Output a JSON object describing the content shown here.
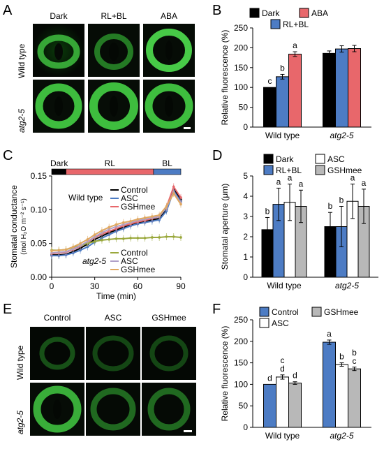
{
  "panels": {
    "A": {
      "letter": "A",
      "columns": [
        "Dark",
        "RL+BL",
        "ABA"
      ],
      "rows": [
        "Wild type",
        "atg2-5"
      ]
    },
    "E": {
      "letter": "E",
      "columns": [
        "Control",
        "ASC",
        "GSHmee"
      ],
      "rows": [
        "Wild type",
        "atg2-5"
      ]
    }
  },
  "chart_data": [
    {
      "id": "B",
      "letter": "B",
      "type": "bar",
      "ylabel": "Relative fluorescence (%)",
      "ylim": [
        0,
        250
      ],
      "yticks": [
        0,
        50,
        100,
        150,
        200,
        250
      ],
      "categories": [
        "Wild type",
        "atg2-5"
      ],
      "legend": [
        {
          "name": "Dark",
          "color": "#000000"
        },
        {
          "name": "ABA",
          "color": "#e8676b"
        },
        {
          "name": "RL+BL",
          "color": "#4d7cc4"
        }
      ],
      "series": [
        {
          "name": "Dark",
          "color": "#000000",
          "values": [
            100,
            186
          ],
          "errors": [
            0,
            6
          ],
          "letters": [
            "c",
            ""
          ]
        },
        {
          "name": "RL+BL",
          "color": "#4d7cc4",
          "values": [
            127,
            197
          ],
          "errors": [
            6,
            8
          ],
          "letters": [
            "b",
            ""
          ]
        },
        {
          "name": "ABA",
          "color": "#e8676b",
          "values": [
            184,
            198
          ],
          "errors": [
            6,
            8
          ],
          "letters": [
            "a",
            ""
          ]
        }
      ]
    },
    {
      "id": "C",
      "letter": "C",
      "type": "line",
      "xlabel": "Time (min)",
      "ylabel": "Stomatal conductance",
      "ylabel2": "(mol H₂O m⁻² s⁻¹)",
      "xlim": [
        0,
        90
      ],
      "ylim": [
        0,
        0.15
      ],
      "xticks": [
        0,
        30,
        60,
        90
      ],
      "yticks": [
        0,
        0.05,
        0.1,
        0.15
      ],
      "yticklabels": [
        "0.00",
        "0.05",
        "0.10",
        "0.15"
      ],
      "light_bar": [
        {
          "label": "Dark",
          "start": 0,
          "end": 10,
          "color": "#000000"
        },
        {
          "label": "RL",
          "start": 10,
          "end": 71,
          "color": "#e8676b"
        },
        {
          "label": "BL",
          "start": 71,
          "end": 90,
          "color": "#4d7cc4"
        }
      ],
      "legend_wt": {
        "title": "Wild type",
        "items": [
          {
            "name": "Control",
            "color": "#000000"
          },
          {
            "name": "ASC",
            "color": "#4d7cc4"
          },
          {
            "name": "GSHmee",
            "color": "#e8676b"
          }
        ]
      },
      "legend_atg": {
        "title": "atg2-5",
        "items": [
          {
            "name": "Control",
            "color": "#9aa83c"
          },
          {
            "name": "ASC",
            "color": "#b0a0c8"
          },
          {
            "name": "GSHmee",
            "color": "#e0a860"
          }
        ]
      },
      "x": [
        0,
        5,
        10,
        15,
        20,
        25,
        30,
        35,
        40,
        45,
        50,
        55,
        60,
        65,
        70,
        75,
        80,
        85,
        90
      ],
      "series": [
        {
          "name": "Wild type Control",
          "color": "#000000",
          "values": [
            0.033,
            0.033,
            0.034,
            0.038,
            0.043,
            0.049,
            0.056,
            0.061,
            0.066,
            0.07,
            0.074,
            0.078,
            0.081,
            0.083,
            0.085,
            0.087,
            0.1,
            0.131,
            0.115
          ]
        },
        {
          "name": "Wild type ASC",
          "color": "#4d7cc4",
          "values": [
            0.032,
            0.032,
            0.033,
            0.036,
            0.04,
            0.045,
            0.052,
            0.058,
            0.063,
            0.068,
            0.072,
            0.076,
            0.079,
            0.081,
            0.083,
            0.085,
            0.098,
            0.128,
            0.112
          ]
        },
        {
          "name": "Wild type GSHmee",
          "color": "#e8676b",
          "values": [
            0.035,
            0.036,
            0.037,
            0.041,
            0.046,
            0.052,
            0.059,
            0.064,
            0.068,
            0.072,
            0.076,
            0.079,
            0.082,
            0.084,
            0.087,
            0.09,
            0.104,
            0.134,
            0.118
          ]
        },
        {
          "name": "atg2-5 Control",
          "color": "#9aa83c",
          "values": [
            0.04,
            0.04,
            0.041,
            0.044,
            0.047,
            0.05,
            0.053,
            0.055,
            0.056,
            0.057,
            0.057,
            0.058,
            0.058,
            0.058,
            0.059,
            0.059,
            0.06,
            0.06,
            0.059
          ]
        },
        {
          "name": "atg2-5 ASC",
          "color": "#b0a0c8",
          "values": [
            0.036,
            0.037,
            0.038,
            0.042,
            0.047,
            0.053,
            0.06,
            0.066,
            0.071,
            0.075,
            0.078,
            0.081,
            0.084,
            0.086,
            0.088,
            0.09,
            0.103,
            0.126,
            0.11
          ]
        },
        {
          "name": "atg2-5 GSHmee",
          "color": "#e0a860",
          "values": [
            0.039,
            0.04,
            0.041,
            0.045,
            0.05,
            0.056,
            0.063,
            0.069,
            0.074,
            0.078,
            0.081,
            0.083,
            0.086,
            0.088,
            0.09,
            0.092,
            0.105,
            0.124,
            0.108
          ]
        }
      ]
    },
    {
      "id": "D",
      "letter": "D",
      "type": "bar",
      "ylabel": "Stomatal aperture (μm)",
      "ylim": [
        0,
        5
      ],
      "yticks": [
        0,
        1,
        2,
        3,
        4,
        5
      ],
      "categories": [
        "Wild type",
        "atg2-5"
      ],
      "legend": [
        {
          "name": "Dark",
          "color": "#000000"
        },
        {
          "name": "ASC",
          "color": "#ffffff"
        },
        {
          "name": "RL+BL",
          "color": "#4d7cc4"
        },
        {
          "name": "GSHmee",
          "color": "#b8b8b8"
        }
      ],
      "series": [
        {
          "name": "Dark",
          "color": "#000000",
          "values": [
            2.35,
            2.5
          ],
          "errors": [
            0.6,
            0.7
          ],
          "letters": [
            "b",
            "b"
          ]
        },
        {
          "name": "RL+BL",
          "color": "#4d7cc4",
          "values": [
            3.6,
            2.5
          ],
          "errors": [
            0.8,
            1.0
          ],
          "letters": [
            "a",
            "b"
          ]
        },
        {
          "name": "ASC",
          "color": "#ffffff",
          "values": [
            3.7,
            3.75
          ],
          "errors": [
            0.9,
            0.85
          ],
          "letters": [
            "a",
            "a"
          ]
        },
        {
          "name": "GSHmee",
          "color": "#b8b8b8",
          "values": [
            3.5,
            3.5
          ],
          "errors": [
            0.8,
            0.85
          ],
          "letters": [
            "a",
            "a"
          ]
        }
      ]
    },
    {
      "id": "F",
      "letter": "F",
      "type": "bar",
      "ylabel": "Relative fluorescence (%)",
      "ylim": [
        0,
        250
      ],
      "yticks": [
        0,
        50,
        100,
        150,
        200,
        250
      ],
      "categories": [
        "Wild type",
        "atg2-5"
      ],
      "legend": [
        {
          "name": "Control",
          "color": "#4d7cc4"
        },
        {
          "name": "GSHmee",
          "color": "#b8b8b8"
        },
        {
          "name": "ASC",
          "color": "#ffffff"
        }
      ],
      "series": [
        {
          "name": "Control",
          "color": "#4d7cc4",
          "values": [
            100,
            198
          ],
          "errors": [
            0,
            5
          ],
          "letters": [
            "d",
            "a"
          ]
        },
        {
          "name": "ASC",
          "color": "#ffffff",
          "values": [
            117,
            146
          ],
          "errors": [
            5,
            4
          ],
          "letters": [
            "c\nd",
            "b"
          ]
        },
        {
          "name": "GSHmee",
          "color": "#b8b8b8",
          "values": [
            103,
            136
          ],
          "errors": [
            3,
            4
          ],
          "letters": [
            "d",
            "b\nc"
          ]
        }
      ]
    }
  ]
}
